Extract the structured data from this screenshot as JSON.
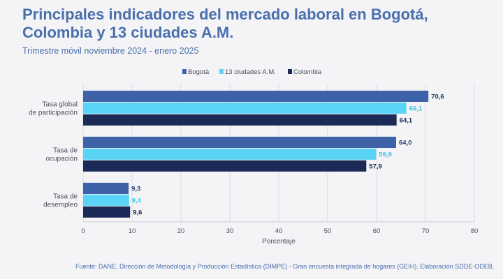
{
  "header": {
    "title": "Principales indicadores del mercado laboral en Bogotá, Colombia y 13 ciudades A.M.",
    "subtitle": "Trimestre móvil noviembre 2024 - enero 2025"
  },
  "footer": {
    "source": "Fuente: DANE, Dirección de Metodología y Producción Estadística (DIMPE) - Gran encuesta integrada de hogares (GEIH). Elaboración SDDE-ODEB."
  },
  "chart_data": {
    "type": "bar",
    "orientation": "horizontal",
    "categories": [
      [
        "Tasa global",
        "de participación"
      ],
      [
        "Tasa de",
        "ocupación"
      ],
      [
        "Tasa de",
        "desempleo"
      ]
    ],
    "series": [
      {
        "name": "Bogotá",
        "values": [
          70.6,
          64.0,
          9.3
        ],
        "labels": [
          "70,6",
          "64,0",
          "9,3"
        ],
        "color": "#3e62a8",
        "label_color": "#2a3f6e"
      },
      {
        "name": "13 ciudades A.M.",
        "values": [
          66.1,
          59.9,
          9.4
        ],
        "labels": [
          "66,1",
          "59,9",
          "9,4"
        ],
        "color": "#5ad4f6",
        "label_color": "#40c4ec"
      },
      {
        "name": "Colombia",
        "values": [
          64.1,
          57.9,
          9.6
        ],
        "labels": [
          "64,1",
          "57,9",
          "9,6"
        ],
        "color": "#1c2a57",
        "label_color": "#1c2a57"
      }
    ],
    "xlabel": "Porcentaje",
    "xlim": [
      0,
      80
    ],
    "xticks": [
      0,
      10,
      20,
      30,
      40,
      50,
      60,
      70,
      80
    ],
    "grid": true,
    "legend": "top-center"
  }
}
